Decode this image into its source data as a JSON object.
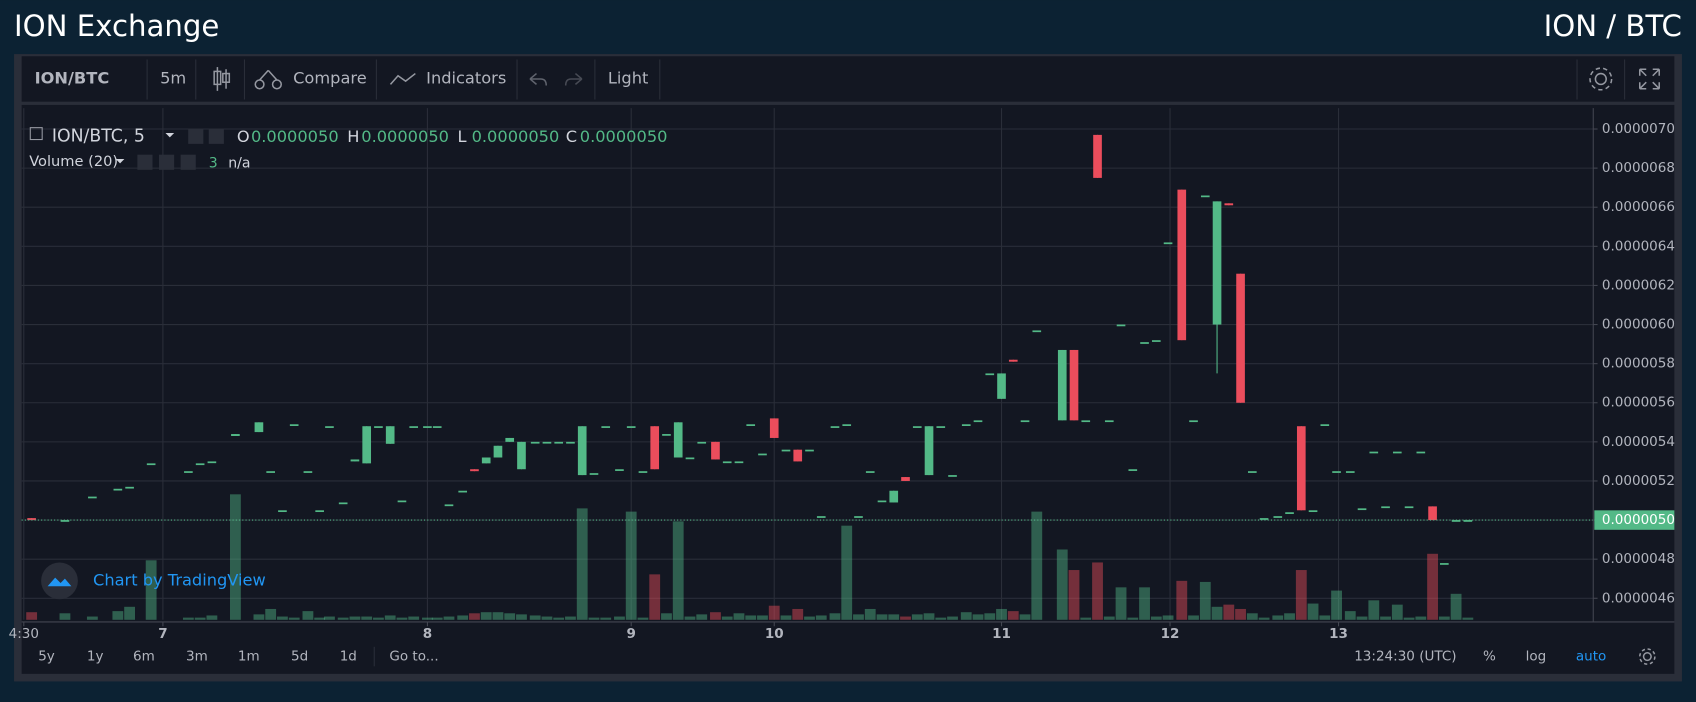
{
  "header": {
    "title": "ION Exchange",
    "pair": "ION / BTC"
  },
  "toolbar": {
    "symbol": "ION/BTC",
    "interval": "5m",
    "compare": "Compare",
    "indicators": "Indicators",
    "theme": "Light"
  },
  "watermark": "Chart by TradingView",
  "footer": {
    "ranges": [
      "5y",
      "1y",
      "6m",
      "3m",
      "1m",
      "5d",
      "1d"
    ],
    "goto": "Go to...",
    "time": "13:24:30 (UTC)",
    "percent": "%",
    "log": "log",
    "auto": "auto"
  },
  "chart_data": {
    "type": "candlestick",
    "legend": {
      "symbol": "ION/BTC, 5",
      "ohlc": [
        {
          "label": "O",
          "value": "0.0000050"
        },
        {
          "label": "H",
          "value": "0.0000050"
        },
        {
          "label": "L",
          "value": "0.0000050"
        },
        {
          "label": "C",
          "value": "0.0000050"
        }
      ],
      "volume": {
        "label": "Volume (20)",
        "length": "3",
        "value": "n/a"
      }
    },
    "up_color": "#53b987",
    "down_color": "#eb4d5c",
    "xlim": [
      6.29,
      14.3
    ],
    "xticks": [
      {
        "value": 6.29,
        "label": "4:30"
      },
      {
        "value": 7.0,
        "label": "7"
      },
      {
        "value": 8.35,
        "label": "8"
      },
      {
        "value": 9.39,
        "label": "9"
      },
      {
        "value": 10.12,
        "label": "10"
      },
      {
        "value": 11.28,
        "label": "11"
      },
      {
        "value": 12.14,
        "label": "12"
      },
      {
        "value": 13.0,
        "label": "13"
      }
    ],
    "ylim": [
      4.49e-06,
      7.09e-06
    ],
    "yticks": [
      {
        "value": 4.6e-06,
        "label": "0.0000046"
      },
      {
        "value": 4.8e-06,
        "label": "0.0000048"
      },
      {
        "value": 5e-06,
        "label": "0.0000050"
      },
      {
        "value": 5.2e-06,
        "label": "0.0000052"
      },
      {
        "value": 5.4e-06,
        "label": "0.0000054"
      },
      {
        "value": 5.6e-06,
        "label": "0.0000056"
      },
      {
        "value": 5.8e-06,
        "label": "0.0000058"
      },
      {
        "value": 6e-06,
        "label": "0.0000060"
      },
      {
        "value": 6.2e-06,
        "label": "0.0000062"
      },
      {
        "value": 6.4e-06,
        "label": "0.0000064"
      },
      {
        "value": 6.6e-06,
        "label": "0.0000066"
      },
      {
        "value": 6.8e-06,
        "label": "0.0000068"
      },
      {
        "value": 7e-06,
        "label": "0.0000070"
      }
    ],
    "last_price": {
      "value": 5e-06,
      "label": "0.0000050"
    },
    "vlim": [
      0,
      470
    ],
    "grid": true,
    "candles": [
      [
        6.33,
        5.01e-06,
        5.01e-06,
        5e-06,
        5e-06,
        7
      ],
      [
        6.5,
        5e-06,
        5e-06,
        5e-06,
        5e-06,
        6
      ],
      [
        6.64,
        5.12e-06,
        5.12e-06,
        5.12e-06,
        5.12e-06,
        3
      ],
      [
        6.77,
        5.16e-06,
        5.16e-06,
        5.16e-06,
        5.16e-06,
        8
      ],
      [
        6.83,
        5.17e-06,
        5.17e-06,
        5.17e-06,
        5.17e-06,
        12
      ],
      [
        6.94,
        5.29e-06,
        5.29e-06,
        5.29e-06,
        5.29e-06,
        55
      ],
      [
        7.13,
        5.25e-06,
        5.25e-06,
        5.25e-06,
        5.25e-06,
        2
      ],
      [
        7.19,
        5.29e-06,
        5.29e-06,
        5.29e-06,
        5.29e-06,
        2
      ],
      [
        7.25,
        5.3e-06,
        5.3e-06,
        5.3e-06,
        5.3e-06,
        4
      ],
      [
        7.37,
        5.43e-06,
        5.44e-06,
        5.43e-06,
        5.44e-06,
        116
      ],
      [
        7.49,
        5.45e-06,
        5.5e-06,
        5.45e-06,
        5.5e-06,
        5
      ],
      [
        7.55,
        5.25e-06,
        5.25e-06,
        5.25e-06,
        5.25e-06,
        10
      ],
      [
        7.61,
        5.05e-06,
        5.05e-06,
        5.05e-06,
        5.05e-06,
        3
      ],
      [
        7.67,
        5.49e-06,
        5.49e-06,
        5.49e-06,
        5.49e-06,
        2
      ],
      [
        7.74,
        5.25e-06,
        5.25e-06,
        5.25e-06,
        5.25e-06,
        8
      ],
      [
        7.8,
        5.05e-06,
        5.05e-06,
        5.05e-06,
        5.05e-06,
        2
      ],
      [
        7.85,
        5.48e-06,
        5.48e-06,
        5.48e-06,
        5.48e-06,
        3
      ],
      [
        7.92,
        5.09e-06,
        5.09e-06,
        5.09e-06,
        5.09e-06,
        2
      ],
      [
        7.98,
        5.3e-06,
        5.31e-06,
        5.3e-06,
        5.31e-06,
        3
      ],
      [
        8.04,
        5.29e-06,
        5.48e-06,
        5.29e-06,
        5.48e-06,
        3
      ],
      [
        8.1,
        5.48e-06,
        5.48e-06,
        5.48e-06,
        5.48e-06,
        2
      ],
      [
        8.16,
        5.39e-06,
        5.48e-06,
        5.39e-06,
        5.48e-06,
        4
      ],
      [
        8.22,
        5.1e-06,
        5.1e-06,
        5.1e-06,
        5.1e-06,
        2
      ],
      [
        8.28,
        5.48e-06,
        5.48e-06,
        5.48e-06,
        5.48e-06,
        3
      ],
      [
        8.35,
        5.48e-06,
        5.48e-06,
        5.48e-06,
        5.48e-06,
        2
      ],
      [
        8.4,
        5.48e-06,
        5.48e-06,
        5.48e-06,
        5.48e-06,
        2
      ],
      [
        8.46,
        5.08e-06,
        5.08e-06,
        5.08e-06,
        5.08e-06,
        3
      ],
      [
        8.53,
        5.15e-06,
        5.15e-06,
        5.15e-06,
        5.15e-06,
        4
      ],
      [
        8.59,
        5.26e-06,
        5.26e-06,
        5.25e-06,
        5.25e-06,
        6
      ],
      [
        8.65,
        5.29e-06,
        5.32e-06,
        5.29e-06,
        5.32e-06,
        7
      ],
      [
        8.71,
        5.32e-06,
        5.38e-06,
        5.32e-06,
        5.38e-06,
        7
      ],
      [
        8.77,
        5.4e-06,
        5.42e-06,
        5.4e-06,
        5.42e-06,
        6
      ],
      [
        8.83,
        5.26e-06,
        5.4e-06,
        5.26e-06,
        5.4e-06,
        5
      ],
      [
        8.9,
        5.4e-06,
        5.4e-06,
        5.4e-06,
        5.4e-06,
        4
      ],
      [
        8.96,
        5.4e-06,
        5.4e-06,
        5.4e-06,
        5.4e-06,
        3
      ],
      [
        9.02,
        5.4e-06,
        5.4e-06,
        5.4e-06,
        5.4e-06,
        2
      ],
      [
        9.08,
        5.4e-06,
        5.4e-06,
        5.4e-06,
        5.4e-06,
        3
      ],
      [
        9.14,
        5.23e-06,
        5.48e-06,
        5.23e-06,
        5.48e-06,
        103
      ],
      [
        9.2,
        5.24e-06,
        5.24e-06,
        5.24e-06,
        5.24e-06,
        2
      ],
      [
        9.26,
        5.48e-06,
        5.48e-06,
        5.48e-06,
        5.48e-06,
        2
      ],
      [
        9.33,
        5.26e-06,
        5.26e-06,
        5.26e-06,
        5.26e-06,
        3
      ],
      [
        9.39,
        5.48e-06,
        5.48e-06,
        5.48e-06,
        5.48e-06,
        100
      ],
      [
        9.45,
        5.25e-06,
        5.25e-06,
        5.25e-06,
        5.25e-06,
        2
      ],
      [
        9.51,
        5.48e-06,
        5.48e-06,
        5.26e-06,
        5.26e-06,
        42
      ],
      [
        9.57,
        5.44e-06,
        5.44e-06,
        5.44e-06,
        5.44e-06,
        6
      ],
      [
        9.63,
        5.32e-06,
        5.5e-06,
        5.32e-06,
        5.5e-06,
        91
      ],
      [
        9.69,
        5.32e-06,
        5.32e-06,
        5.32e-06,
        5.32e-06,
        3
      ],
      [
        9.75,
        5.4e-06,
        5.4e-06,
        5.4e-06,
        5.4e-06,
        5
      ],
      [
        9.82,
        5.4e-06,
        5.4e-06,
        5.31e-06,
        5.31e-06,
        7
      ],
      [
        9.88,
        5.3e-06,
        5.3e-06,
        5.3e-06,
        5.3e-06,
        3
      ],
      [
        9.94,
        5.3e-06,
        5.3e-06,
        5.3e-06,
        5.3e-06,
        6
      ],
      [
        10.0,
        5.49e-06,
        5.49e-06,
        5.49e-06,
        5.49e-06,
        4
      ],
      [
        10.06,
        5.34e-06,
        5.34e-06,
        5.34e-06,
        5.34e-06,
        4
      ],
      [
        10.12,
        5.52e-06,
        5.52e-06,
        5.42e-06,
        5.42e-06,
        13
      ],
      [
        10.18,
        5.36e-06,
        5.36e-06,
        5.36e-06,
        5.36e-06,
        4
      ],
      [
        10.24,
        5.36e-06,
        5.36e-06,
        5.3e-06,
        5.3e-06,
        10
      ],
      [
        10.3,
        5.36e-06,
        5.36e-06,
        5.36e-06,
        5.36e-06,
        3
      ],
      [
        10.36,
        5.02e-06,
        5.02e-06,
        5.02e-06,
        5.02e-06,
        4
      ],
      [
        10.43,
        5.48e-06,
        5.48e-06,
        5.48e-06,
        5.48e-06,
        6
      ],
      [
        10.49,
        5.49e-06,
        5.49e-06,
        5.49e-06,
        5.49e-06,
        87
      ],
      [
        10.55,
        5.02e-06,
        5.02e-06,
        5.02e-06,
        5.02e-06,
        5
      ],
      [
        10.61,
        5.25e-06,
        5.25e-06,
        5.25e-06,
        5.25e-06,
        10
      ],
      [
        10.67,
        5.1e-06,
        5.1e-06,
        5.1e-06,
        5.1e-06,
        5
      ],
      [
        10.73,
        5.09e-06,
        5.15e-06,
        5.09e-06,
        5.15e-06,
        5
      ],
      [
        10.79,
        5.22e-06,
        5.22e-06,
        5.2e-06,
        5.2e-06,
        3
      ],
      [
        10.85,
        5.48e-06,
        5.48e-06,
        5.48e-06,
        5.48e-06,
        5
      ],
      [
        10.91,
        5.23e-06,
        5.48e-06,
        5.23e-06,
        5.48e-06,
        6
      ],
      [
        10.97,
        5.48e-06,
        5.48e-06,
        5.48e-06,
        5.48e-06,
        2
      ],
      [
        11.03,
        5.23e-06,
        5.23e-06,
        5.23e-06,
        5.23e-06,
        3
      ],
      [
        11.1,
        5.49e-06,
        5.49e-06,
        5.49e-06,
        5.49e-06,
        7
      ],
      [
        11.16,
        5.51e-06,
        5.51e-06,
        5.51e-06,
        5.51e-06,
        5
      ],
      [
        11.22,
        5.75e-06,
        5.75e-06,
        5.75e-06,
        5.75e-06,
        6
      ],
      [
        11.28,
        5.62e-06,
        5.75e-06,
        5.62e-06,
        5.75e-06,
        10
      ],
      [
        11.34,
        5.82e-06,
        5.82e-06,
        5.81e-06,
        5.81e-06,
        8
      ],
      [
        11.4,
        5.51e-06,
        5.51e-06,
        5.51e-06,
        5.51e-06,
        5
      ],
      [
        11.46,
        5.97e-06,
        5.97e-06,
        5.97e-06,
        5.97e-06,
        100
      ],
      [
        11.59,
        5.51e-06,
        5.87e-06,
        5.51e-06,
        5.87e-06,
        65
      ],
      [
        11.65,
        5.87e-06,
        5.87e-06,
        5.51e-06,
        5.51e-06,
        46
      ],
      [
        11.71,
        5.51e-06,
        5.51e-06,
        5.51e-06,
        5.51e-06,
        2
      ],
      [
        11.77,
        6.97e-06,
        6.97e-06,
        6.75e-06,
        6.75e-06,
        53
      ],
      [
        11.83,
        5.51e-06,
        5.51e-06,
        5.51e-06,
        5.51e-06,
        3
      ],
      [
        11.89,
        6e-06,
        6e-06,
        6e-06,
        6e-06,
        30
      ],
      [
        11.95,
        5.26e-06,
        5.26e-06,
        5.26e-06,
        5.26e-06,
        2
      ],
      [
        12.01,
        5.91e-06,
        5.91e-06,
        5.91e-06,
        5.91e-06,
        30
      ],
      [
        12.07,
        5.92e-06,
        5.92e-06,
        5.92e-06,
        5.92e-06,
        3
      ],
      [
        12.13,
        6.42e-06,
        6.42e-06,
        6.42e-06,
        6.42e-06,
        4
      ],
      [
        12.2,
        6.69e-06,
        6.69e-06,
        5.92e-06,
        5.92e-06,
        36
      ],
      [
        12.26,
        5.51e-06,
        5.51e-06,
        5.51e-06,
        5.51e-06,
        4
      ],
      [
        12.32,
        6.66e-06,
        6.66e-06,
        6.66e-06,
        6.66e-06,
        35
      ],
      [
        12.38,
        6e-06,
        6.63e-06,
        5.75e-06,
        6.63e-06,
        12
      ],
      [
        12.44,
        6.62e-06,
        6.62e-06,
        6.61e-06,
        6.61e-06,
        14
      ],
      [
        12.5,
        6.26e-06,
        6.26e-06,
        5.6e-06,
        5.6e-06,
        10
      ],
      [
        12.56,
        5.25e-06,
        5.25e-06,
        5.25e-06,
        5.25e-06,
        6
      ],
      [
        12.62,
        5.01e-06,
        5.01e-06,
        5.01e-06,
        5.01e-06,
        2
      ],
      [
        12.69,
        5.02e-06,
        5.02e-06,
        5.02e-06,
        5.02e-06,
        4
      ],
      [
        12.75,
        5.04e-06,
        5.04e-06,
        5.04e-06,
        5.04e-06,
        6
      ],
      [
        12.81,
        5.48e-06,
        5.48e-06,
        5.05e-06,
        5.05e-06,
        46
      ],
      [
        12.87,
        5.05e-06,
        5.05e-06,
        5.05e-06,
        5.05e-06,
        15
      ],
      [
        12.93,
        5.49e-06,
        5.49e-06,
        5.49e-06,
        5.49e-06,
        4
      ],
      [
        12.99,
        5.25e-06,
        5.25e-06,
        5.25e-06,
        5.25e-06,
        27
      ],
      [
        13.06,
        5.25e-06,
        5.25e-06,
        5.25e-06,
        5.25e-06,
        8
      ],
      [
        13.12,
        5.06e-06,
        5.06e-06,
        5.06e-06,
        5.06e-06,
        3
      ],
      [
        13.18,
        5.35e-06,
        5.35e-06,
        5.35e-06,
        5.35e-06,
        18
      ],
      [
        13.24,
        5.07e-06,
        5.07e-06,
        5.07e-06,
        5.07e-06,
        3
      ],
      [
        13.3,
        5.35e-06,
        5.35e-06,
        5.35e-06,
        5.35e-06,
        14
      ],
      [
        13.36,
        5.07e-06,
        5.07e-06,
        5.07e-06,
        5.07e-06,
        2
      ],
      [
        13.42,
        5.35e-06,
        5.35e-06,
        5.35e-06,
        5.35e-06,
        3
      ],
      [
        13.48,
        5.07e-06,
        5.07e-06,
        5e-06,
        5e-06,
        61
      ],
      [
        13.54,
        4.78e-06,
        4.78e-06,
        4.78e-06,
        4.78e-06,
        3
      ],
      [
        13.6,
        5e-06,
        5e-06,
        5e-06,
        5e-06,
        24
      ],
      [
        13.66,
        5e-06,
        5e-06,
        5e-06,
        5e-06,
        2
      ]
    ]
  }
}
